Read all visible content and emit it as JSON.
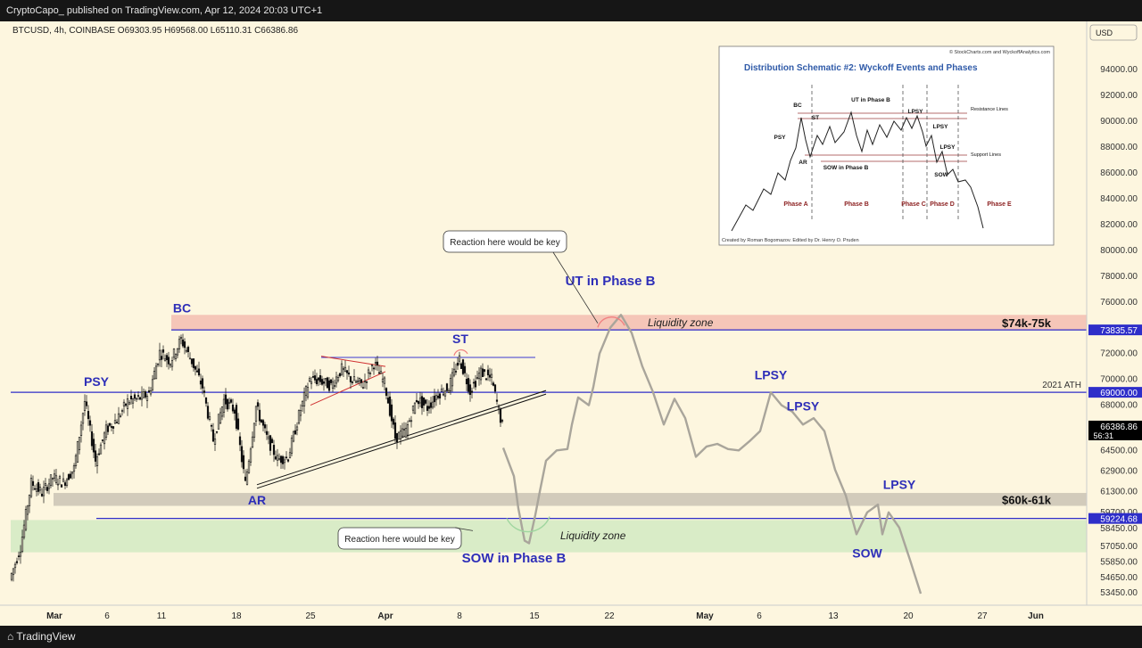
{
  "header": {
    "publish_line": "CryptoCapo_ published on TradingView.com, Apr 12, 2024 20:03 UTC+1"
  },
  "footer": {
    "brand": "TradingView"
  },
  "symbol_line": "BTCUSD, 4h, COINBASE  O69303.95  H69568.00  L65110.31  C66386.86",
  "currency": "USD",
  "chart_data": {
    "type": "line",
    "title": "",
    "xlabel": "",
    "ylabel": "",
    "ylim": [
      52500,
      96500
    ],
    "x_tick_labels": [
      "Mar",
      "6",
      "11",
      "18",
      "25",
      "Apr",
      "8",
      "15",
      "22",
      "May",
      "6",
      "13",
      "20",
      "27",
      "Jun"
    ],
    "y_tick_labels": [
      94000,
      92000,
      90000,
      88000,
      86000,
      84000,
      82000,
      80000,
      78000,
      76000,
      72000,
      70000,
      68000,
      64500,
      62900,
      61300,
      59700,
      58450,
      57050,
      55850,
      54650,
      53450
    ],
    "price_labels": [
      {
        "value": 73835.57,
        "text": "73835.57",
        "color": "#2e2ec9"
      },
      {
        "value": 69000.0,
        "text": "69000.00",
        "color": "#2e2ec9"
      },
      {
        "value": 59224.68,
        "text": "59224.68",
        "color": "#2e2ec9"
      },
      {
        "value": 66386.86,
        "text": "66386.86",
        "sub": "56:31",
        "color": "#000000"
      }
    ],
    "horizontal_lines": [
      {
        "value": 73835.57,
        "start_date": "2024-03-12",
        "color": "#2e2ec9"
      },
      {
        "value": 69000,
        "start_date": "2024-02-26",
        "label": "2021 ATH",
        "color": "#2e2ec9"
      },
      {
        "value": 59224.68,
        "start_date": "2024-03-05",
        "color": "#2e2ec9"
      }
    ],
    "zones": [
      {
        "from": 73800,
        "to": 75000,
        "start_date": "2024-03-12",
        "color": "#f5c6b8",
        "label": "Liquidity zone",
        "right_label": "$74k-75k"
      },
      {
        "from": 60200,
        "to": 61200,
        "start_date": "2024-03-01",
        "color": "#d2cbbb",
        "right_label": "$60k-61k"
      },
      {
        "from": 56600,
        "to": 59100,
        "start_date": "2024-02-26",
        "color": "#d9ecc7",
        "label": "Liquidity zone"
      }
    ],
    "candles_4h": {
      "start": "2024-02-26",
      "end": "2024-04-12",
      "approx_daily_closes": [
        [
          "2024-02-26",
          54500
        ],
        [
          "2024-02-27",
          57000
        ],
        [
          "2024-02-28",
          62000
        ],
        [
          "2024-02-29",
          61200
        ],
        [
          "2024-03-01",
          62400
        ],
        [
          "2024-03-02",
          62000
        ],
        [
          "2024-03-03",
          63100
        ],
        [
          "2024-03-04",
          68300
        ],
        [
          "2024-03-05",
          63700
        ],
        [
          "2024-03-06",
          66100
        ],
        [
          "2024-03-07",
          66900
        ],
        [
          "2024-03-08",
          68300
        ],
        [
          "2024-03-09",
          68500
        ],
        [
          "2024-03-10",
          68900
        ],
        [
          "2024-03-11",
          72100
        ],
        [
          "2024-03-12",
          71400
        ],
        [
          "2024-03-13",
          73100
        ],
        [
          "2024-03-14",
          71400
        ],
        [
          "2024-03-15",
          69400
        ],
        [
          "2024-03-16",
          65300
        ],
        [
          "2024-03-17",
          68400
        ],
        [
          "2024-03-18",
          67600
        ],
        [
          "2024-03-19",
          61900
        ],
        [
          "2024-03-20",
          67900
        ],
        [
          "2024-03-21",
          65500
        ],
        [
          "2024-03-22",
          63800
        ],
        [
          "2024-03-23",
          64000
        ],
        [
          "2024-03-24",
          67200
        ],
        [
          "2024-03-25",
          70000
        ],
        [
          "2024-03-26",
          69900
        ],
        [
          "2024-03-27",
          69500
        ],
        [
          "2024-03-28",
          70800
        ],
        [
          "2024-03-29",
          69900
        ],
        [
          "2024-03-30",
          69600
        ],
        [
          "2024-03-31",
          71300
        ],
        [
          "2024-04-01",
          69700
        ],
        [
          "2024-04-02",
          65500
        ],
        [
          "2024-04-03",
          66000
        ],
        [
          "2024-04-04",
          68500
        ],
        [
          "2024-04-05",
          67800
        ],
        [
          "2024-04-06",
          68900
        ],
        [
          "2024-04-07",
          69400
        ],
        [
          "2024-04-08",
          71600
        ],
        [
          "2024-04-09",
          69100
        ],
        [
          "2024-04-10",
          70600
        ],
        [
          "2024-04-11",
          70000
        ],
        [
          "2024-04-12",
          66386.86
        ]
      ]
    },
    "projection_path": [
      [
        "2024-04-12",
        64700
      ],
      [
        "2024-04-13",
        62500
      ],
      [
        "2024-04-13",
        60000
      ],
      [
        "2024-04-14",
        57500
      ],
      [
        "2024-04-14",
        57300
      ],
      [
        "2024-04-15",
        59500
      ],
      [
        "2024-04-15",
        61300
      ],
      [
        "2024-04-16",
        63700
      ],
      [
        "2024-04-17",
        64500
      ],
      [
        "2024-04-18",
        64600
      ],
      [
        "2024-04-18",
        66500
      ],
      [
        "2024-04-19",
        68600
      ],
      [
        "2024-04-20",
        68000
      ],
      [
        "2024-04-20",
        69400
      ],
      [
        "2024-04-21",
        72000
      ],
      [
        "2024-04-22",
        74000
      ],
      [
        "2024-04-23",
        75000
      ],
      [
        "2024-04-24",
        73600
      ],
      [
        "2024-04-25",
        71000
      ],
      [
        "2024-04-26",
        69000
      ],
      [
        "2024-04-27",
        66500
      ],
      [
        "2024-04-28",
        68500
      ],
      [
        "2024-04-29",
        67000
      ],
      [
        "2024-04-30",
        64000
      ],
      [
        "2024-05-01",
        64800
      ],
      [
        "2024-05-02",
        65000
      ],
      [
        "2024-05-03",
        64600
      ],
      [
        "2024-05-04",
        64500
      ],
      [
        "2024-05-05",
        65200
      ],
      [
        "2024-05-06",
        66000
      ],
      [
        "2024-05-07",
        69000
      ],
      [
        "2024-05-08",
        68000
      ],
      [
        "2024-05-09",
        67500
      ],
      [
        "2024-05-10",
        66500
      ],
      [
        "2024-05-11",
        67000
      ],
      [
        "2024-05-12",
        66000
      ],
      [
        "2024-05-13",
        63000
      ],
      [
        "2024-05-14",
        61000
      ],
      [
        "2024-05-15",
        58000
      ],
      [
        "2024-05-16",
        59700
      ],
      [
        "2024-05-17",
        60300
      ],
      [
        "2024-05-17",
        58000
      ],
      [
        "2024-05-18",
        59700
      ],
      [
        "2024-05-19",
        58500
      ],
      [
        "2024-05-20",
        56000
      ],
      [
        "2024-05-21",
        53400
      ]
    ],
    "trendlines": [
      {
        "name": "support-trendline",
        "from": [
          "2024-03-20",
          61700
        ],
        "to": [
          "2024-04-16",
          69000
        ]
      },
      {
        "name": "range-top-line",
        "from": [
          "2024-03-26",
          71700
        ],
        "to": [
          "2024-04-15",
          71700
        ]
      },
      {
        "name": "red-line-upper",
        "from": [
          "2024-03-26",
          71800
        ],
        "to": [
          "2024-04-01",
          71000
        ]
      },
      {
        "name": "red-line-lower",
        "from": [
          "2024-03-25",
          68000
        ],
        "to": [
          "2024-04-01",
          70600
        ]
      }
    ],
    "annotations": [
      {
        "text": "PSY",
        "date": "2024-03-05",
        "value": 69500
      },
      {
        "text": "BC",
        "date": "2024-03-13",
        "value": 75200
      },
      {
        "text": "AR",
        "date": "2024-03-20",
        "value": 60300
      },
      {
        "text": "ST",
        "date": "2024-04-08",
        "value": 72800
      },
      {
        "text": "UT in Phase B",
        "date": "2024-04-22",
        "value": 77300
      },
      {
        "text": "SOW in Phase B",
        "date": "2024-04-13",
        "value": 55800
      },
      {
        "text": "LPSY",
        "date": "2024-05-07",
        "value": 70000
      },
      {
        "text": "LPSY",
        "date": "2024-05-10",
        "value": 67600
      },
      {
        "text": "SOW",
        "date": "2024-05-16",
        "value": 56200
      },
      {
        "text": "LPSY",
        "date": "2024-05-19",
        "value": 61500
      }
    ],
    "callouts": [
      {
        "text": "Reaction here would be key",
        "anchor_date": "2024-04-22",
        "anchor_value": 74900
      },
      {
        "text": "Reaction here would be key",
        "anchor_date": "2024-04-09",
        "anchor_value": 58000
      }
    ],
    "inset": {
      "credit_top": "© StockCharts.com and WyckoffAnalytics.com",
      "title": "Distribution Schematic #2: Wyckoff Events and Phases",
      "credit_bottom": "Created by Roman Bogomazov. Edited by Dr. Henry O. Pruden",
      "event_labels": [
        "BC",
        "ST",
        "UT in Phase B",
        "LPSY",
        "PSY",
        "LPSY",
        "LPSY",
        "AR",
        "SOW in Phase B",
        "SOW"
      ],
      "side_labels": [
        "Resistance Lines",
        "Support Lines"
      ],
      "phases": [
        "Phase A",
        "Phase B",
        "Phase C",
        "Phase D",
        "Phase E"
      ]
    }
  }
}
